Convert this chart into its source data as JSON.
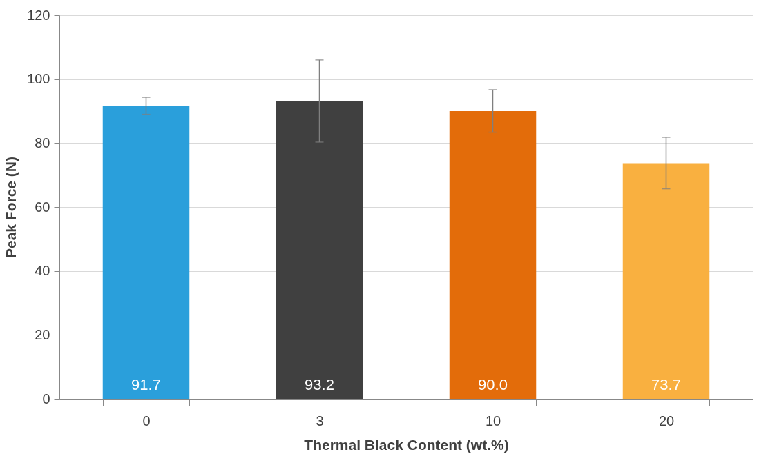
{
  "chart_data": {
    "type": "bar",
    "xlabel": "Thermal Black Content (wt.%)",
    "ylabel": "Peak Force (N)",
    "categories": [
      "0",
      "3",
      "10",
      "20"
    ],
    "values": [
      91.7,
      93.2,
      90.0,
      73.7
    ],
    "value_labels": [
      "91.7",
      "93.2",
      "90.0",
      "73.7"
    ],
    "colors": [
      "#2a9fdb",
      "#404040",
      "#e36c0a",
      "#f9b040"
    ],
    "errors": [
      [
        89.0,
        94.3
      ],
      [
        80.3,
        106.0
      ],
      [
        83.4,
        96.7
      ],
      [
        65.7,
        81.8
      ]
    ],
    "ylim": [
      0,
      120
    ],
    "yticks": [
      0,
      20,
      40,
      60,
      80,
      100,
      120
    ],
    "grid": "y"
  }
}
